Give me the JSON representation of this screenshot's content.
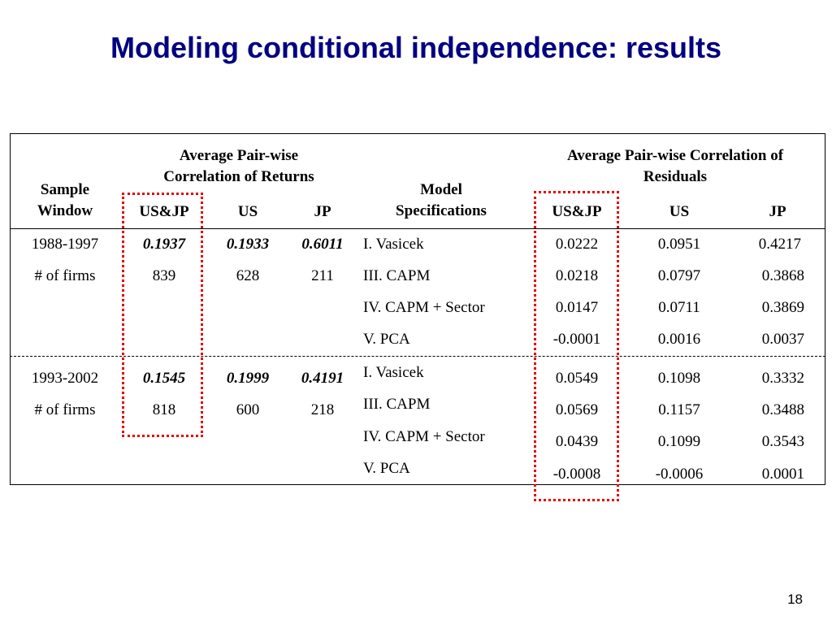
{
  "title": "Modeling conditional independence: results",
  "page_number": "18",
  "header": {
    "sample_window_1": "Sample",
    "sample_window_2": "Window",
    "returns_1": "Average Pair-wise",
    "returns_2": "Correlation of Returns",
    "model_1": "Model",
    "model_2": "Specifications",
    "residuals_1": "Average Pair-wise Correlation of",
    "residuals_2": "Residuals",
    "usjp": "US&JP",
    "us": "US",
    "jp": "JP",
    "res_usjp": "US&JP",
    "res_us": "US",
    "res_jp": "JP"
  },
  "block1": {
    "window": "1988-1997",
    "firms_label": "# of firms",
    "ret_usjp": "0.1937",
    "ret_us": "0.1933",
    "ret_jp": "0.6011",
    "firms_usjp": "839",
    "firms_us": "628",
    "firms_jp": "211",
    "models": [
      "I. Vasicek",
      "III. CAPM",
      "IV. CAPM + Sector",
      "V. PCA"
    ],
    "res_usjp": [
      "0.0222",
      "0.0218",
      "0.0147",
      "-0.0001"
    ],
    "res_us": [
      "0.0951",
      "0.0797",
      "0.0711",
      "0.0016"
    ],
    "res_jp": [
      "0.4217",
      "0.3868",
      "0.3869",
      "0.0037"
    ]
  },
  "block2": {
    "window": "1993-2002",
    "firms_label": "# of firms",
    "ret_usjp": "0.1545",
    "ret_us": "0.1999",
    "ret_jp": "0.4191",
    "firms_usjp": "818",
    "firms_us": "600",
    "firms_jp": "218",
    "models": [
      "I. Vasicek",
      "III. CAPM",
      "IV. CAPM + Sector",
      "V. PCA"
    ],
    "res_usjp": [
      "0.0549",
      "0.0569",
      "0.0439",
      "-0.0008"
    ],
    "res_us": [
      "0.1098",
      "0.1157",
      "0.1099",
      "-0.0006"
    ],
    "res_jp": [
      "0.3332",
      "0.3488",
      "0.3543",
      "0.0001"
    ]
  },
  "colors": {
    "title": "#000080",
    "highlight": "#e00000"
  }
}
